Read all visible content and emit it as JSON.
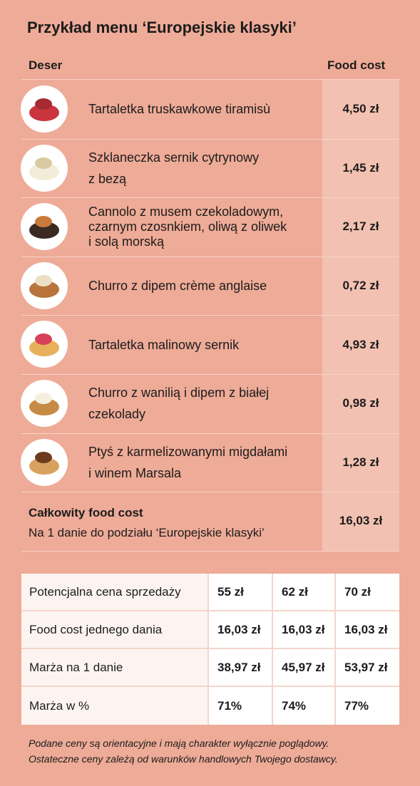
{
  "title": "Przykład menu ‘Europejskie klasyki’",
  "menu": {
    "header": [
      "Deser",
      "Food cost"
    ],
    "rows": [
      {
        "name": [
          "Tartaletka truskawkowe tiramisù"
        ],
        "cost": "4,50 zł"
      },
      {
        "name": [
          "Szklaneczka sernik cytrynowy",
          "z bezą"
        ],
        "cost": "1,45 zł"
      },
      {
        "name": [
          "Cannolo z musem czekoladowym,",
          "czarnym czosnkiem, oliwą z oliwek",
          "i solą morską"
        ],
        "cost": "2,17 zł"
      },
      {
        "name": [
          "Churro z dipem crème anglaise"
        ],
        "cost": "0,72 zł"
      },
      {
        "name": [
          "Tartaletka malinowy sernik"
        ],
        "cost": "4,93 zł"
      },
      {
        "name": [
          "Churro z wanilią i dipem z białej",
          "czekolady"
        ],
        "cost": "0,98 zł"
      },
      {
        "name": [
          "Ptyś z karmelizowanymi migdałami",
          "i winem Marsala"
        ],
        "cost": "1,28 zł"
      }
    ],
    "total": {
      "label": "Całkowity food cost",
      "sublabel": "Na 1 danie do podziału ‘Europejskie klasyki’",
      "cost": "16,03 zł"
    }
  },
  "pricing": {
    "rows": [
      [
        "Potencjalna cena sprzedaży",
        "55 zł",
        "62 zł",
        "70 zł"
      ],
      [
        "Food cost jednego dania",
        "16,03 zł",
        "16,03 zł",
        "16,03 zł"
      ],
      [
        "Marża na 1 danie",
        "38,97 zł",
        "45,97 zł",
        "53,97 zł"
      ],
      [
        "Marża w %",
        "71%",
        "74%",
        "77%"
      ]
    ]
  },
  "footnote": [
    "Podane ceny są orientacyjne i mają charakter wyłącznie poglądowy.",
    "Ostateczne ceny zależą od warunków handlowych Twojego dostawcy."
  ]
}
